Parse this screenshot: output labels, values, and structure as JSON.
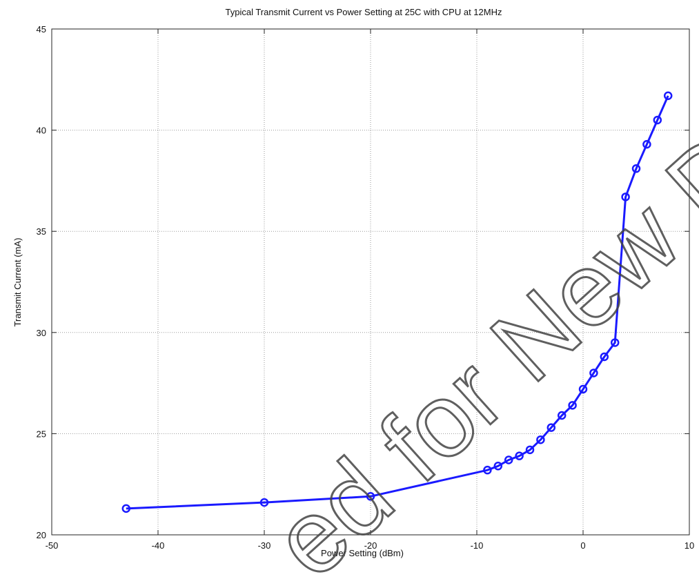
{
  "chart_data": {
    "type": "line",
    "title": "Typical Transmit Current vs Power Setting at 25C with CPU at 12MHz",
    "xlabel": "Power Setting (dBm)",
    "ylabel": "Transmit Current (mA)",
    "xlim": [
      -50,
      10
    ],
    "ylim": [
      20,
      45
    ],
    "xticks": [
      "-50",
      "-40",
      "-30",
      "-20",
      "-10",
      "0",
      "10"
    ],
    "yticks": [
      "20",
      "25",
      "30",
      "35",
      "40",
      "45"
    ],
    "grid": true,
    "series": [
      {
        "color": "#1a1aff",
        "marker": "circle",
        "x": [
          -43,
          -30,
          -20,
          -9,
          -8,
          -7,
          -6,
          -5,
          -4,
          -3,
          -2,
          -1,
          0,
          1,
          2,
          3,
          4,
          5,
          6,
          7,
          8
        ],
        "y": [
          21.3,
          21.6,
          21.9,
          23.2,
          23.4,
          23.7,
          23.9,
          24.2,
          24.7,
          25.3,
          25.9,
          26.4,
          27.2,
          28.0,
          28.8,
          29.5,
          36.7,
          38.1,
          39.3,
          40.5,
          41.7
        ]
      }
    ]
  },
  "watermark": "ed for New De",
  "colors": {
    "series": "#1a1aff",
    "grid": "#9a9a9a",
    "frame": "#222222"
  }
}
